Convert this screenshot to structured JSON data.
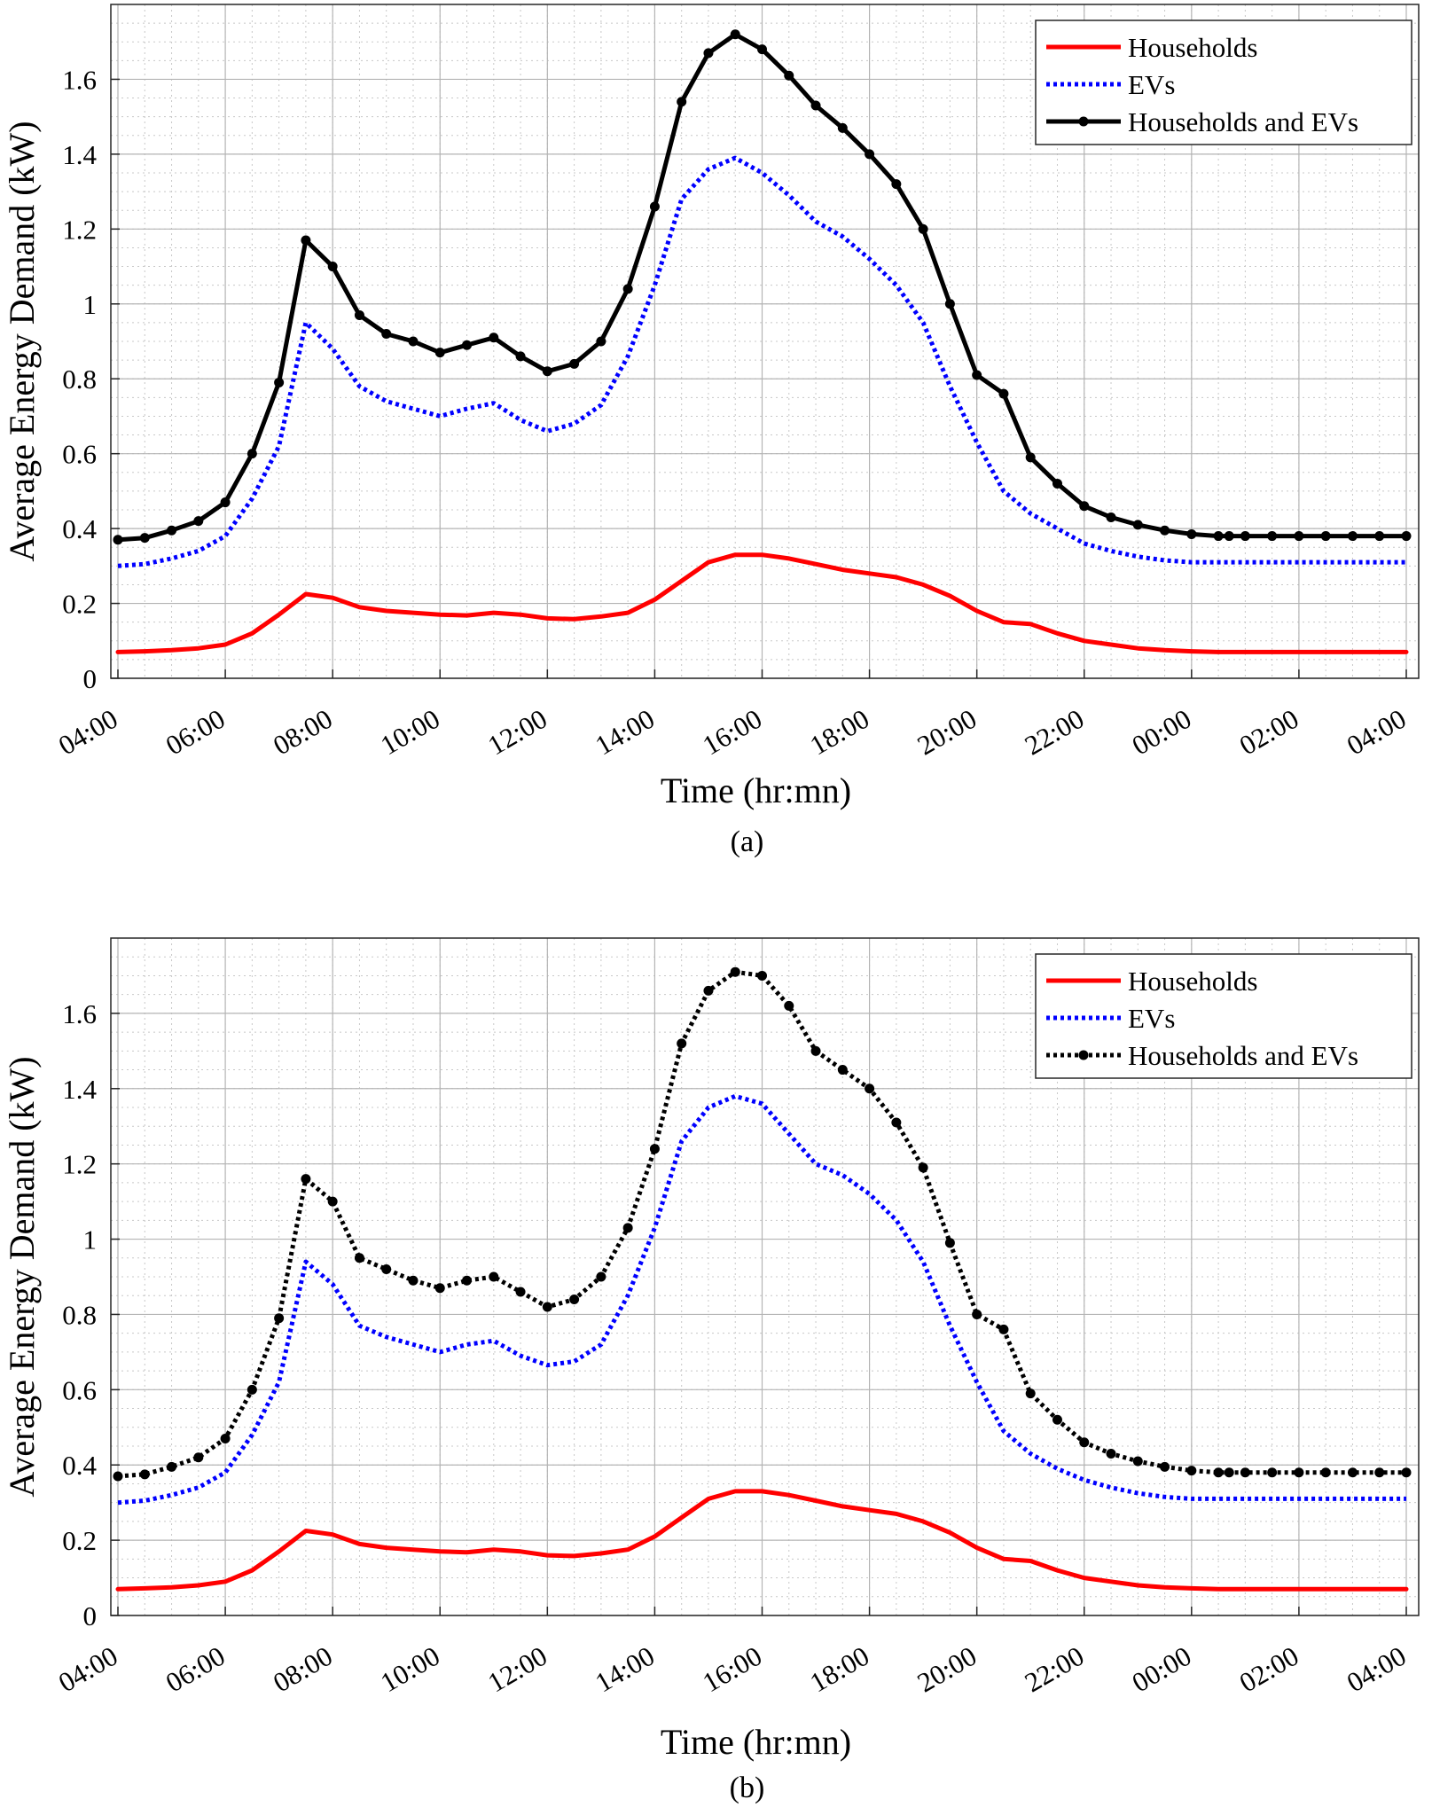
{
  "chart_data": [
    {
      "type": "line",
      "panel_label": "(a)",
      "xlabel": "Time (hr:mn)",
      "ylabel": "Average Energy Demand (kW)",
      "x_unit": "hours since 04:00",
      "xlim": [
        0,
        24
      ],
      "ylim": [
        0,
        1.8
      ],
      "grid": true,
      "minor_grid": true,
      "legend_position": "top-right",
      "x_ticks": [
        0,
        2,
        4,
        6,
        8,
        10,
        12,
        14,
        16,
        18,
        20,
        22,
        24
      ],
      "x_tick_labels": [
        "04:00",
        "06:00",
        "08:00",
        "10:00",
        "12:00",
        "14:00",
        "16:00",
        "18:00",
        "20:00",
        "22:00",
        "00:00",
        "02:00",
        "04:00"
      ],
      "y_ticks": [
        0,
        0.2,
        0.4,
        0.6,
        0.8,
        1,
        1.2,
        1.4,
        1.6
      ],
      "y_tick_labels": [
        "0",
        "0.2",
        "0.4",
        "0.6",
        "0.8",
        "1",
        "1.2",
        "1.4",
        "1.6"
      ],
      "x": [
        0,
        0.5,
        1,
        1.5,
        2,
        2.5,
        3,
        3.5,
        4,
        4.5,
        5,
        5.5,
        6,
        6.5,
        7,
        7.5,
        8,
        8.5,
        9,
        9.5,
        10,
        10.5,
        11,
        11.5,
        12,
        12.5,
        13,
        13.5,
        14,
        14.5,
        15,
        15.5,
        16,
        16.5,
        17,
        17.5,
        18,
        18.5,
        19,
        19.5,
        20,
        20.5,
        20.7,
        21,
        21.5,
        22,
        22.5,
        23,
        23.5,
        24
      ],
      "series": [
        {
          "name": "Households",
          "color": "#ff0000",
          "style": "solid",
          "values": [
            0.07,
            0.072,
            0.075,
            0.08,
            0.09,
            0.12,
            0.17,
            0.225,
            0.215,
            0.19,
            0.18,
            0.175,
            0.17,
            0.168,
            0.175,
            0.17,
            0.16,
            0.158,
            0.165,
            0.175,
            0.21,
            0.26,
            0.31,
            0.33,
            0.33,
            0.32,
            0.305,
            0.29,
            0.28,
            0.27,
            0.25,
            0.22,
            0.18,
            0.15,
            0.145,
            0.12,
            0.1,
            0.09,
            0.08,
            0.075,
            0.072,
            0.07,
            0.07,
            0.07,
            0.07,
            0.07,
            0.07,
            0.07,
            0.07,
            0.07
          ]
        },
        {
          "name": "EVs",
          "color": "#0000ff",
          "style": "dotted",
          "values": [
            0.3,
            0.305,
            0.32,
            0.34,
            0.38,
            0.48,
            0.62,
            0.95,
            0.88,
            0.78,
            0.74,
            0.72,
            0.7,
            0.72,
            0.735,
            0.69,
            0.66,
            0.68,
            0.73,
            0.86,
            1.05,
            1.28,
            1.36,
            1.39,
            1.35,
            1.29,
            1.22,
            1.18,
            1.12,
            1.05,
            0.95,
            0.78,
            0.63,
            0.5,
            0.44,
            0.4,
            0.36,
            0.34,
            0.325,
            0.315,
            0.31,
            0.31,
            0.31,
            0.31,
            0.31,
            0.31,
            0.31,
            0.31,
            0.31,
            0.31
          ]
        },
        {
          "name": "Households and EVs",
          "color": "#000000",
          "style": "solid-marker",
          "values": [
            0.37,
            0.375,
            0.395,
            0.42,
            0.47,
            0.6,
            0.79,
            1.17,
            1.1,
            0.97,
            0.92,
            0.9,
            0.87,
            0.89,
            0.91,
            0.86,
            0.82,
            0.84,
            0.9,
            1.04,
            1.26,
            1.54,
            1.67,
            1.72,
            1.68,
            1.61,
            1.53,
            1.47,
            1.4,
            1.32,
            1.2,
            1.0,
            0.81,
            0.76,
            0.59,
            0.52,
            0.46,
            0.43,
            0.41,
            0.395,
            0.385,
            0.38,
            0.38,
            0.38,
            0.38,
            0.38,
            0.38,
            0.38,
            0.38,
            0.38
          ]
        }
      ]
    },
    {
      "type": "line",
      "panel_label": "(b)",
      "xlabel": "Time (hr:mn)",
      "ylabel": "Average Energy Demand (kW)",
      "x_unit": "hours since 04:00",
      "xlim": [
        0,
        24
      ],
      "ylim": [
        0,
        1.8
      ],
      "grid": true,
      "minor_grid": true,
      "legend_position": "top-right",
      "x_ticks": [
        0,
        2,
        4,
        6,
        8,
        10,
        12,
        14,
        16,
        18,
        20,
        22,
        24
      ],
      "x_tick_labels": [
        "04:00",
        "06:00",
        "08:00",
        "10:00",
        "12:00",
        "14:00",
        "16:00",
        "18:00",
        "20:00",
        "22:00",
        "00:00",
        "02:00",
        "04:00"
      ],
      "y_ticks": [
        0,
        0.2,
        0.4,
        0.6,
        0.8,
        1,
        1.2,
        1.4,
        1.6
      ],
      "y_tick_labels": [
        "0",
        "0.2",
        "0.4",
        "0.6",
        "0.8",
        "1",
        "1.2",
        "1.4",
        "1.6"
      ],
      "x": [
        0,
        0.5,
        1,
        1.5,
        2,
        2.5,
        3,
        3.5,
        4,
        4.5,
        5,
        5.5,
        6,
        6.5,
        7,
        7.5,
        8,
        8.5,
        9,
        9.5,
        10,
        10.5,
        11,
        11.5,
        12,
        12.5,
        13,
        13.5,
        14,
        14.5,
        15,
        15.5,
        16,
        16.5,
        17,
        17.5,
        18,
        18.5,
        19,
        19.5,
        20,
        20.5,
        20.7,
        21,
        21.5,
        22,
        22.5,
        23,
        23.5,
        24
      ],
      "series": [
        {
          "name": "Households",
          "color": "#ff0000",
          "style": "solid",
          "values": [
            0.07,
            0.072,
            0.075,
            0.08,
            0.09,
            0.12,
            0.17,
            0.225,
            0.215,
            0.19,
            0.18,
            0.175,
            0.17,
            0.168,
            0.175,
            0.17,
            0.16,
            0.158,
            0.165,
            0.175,
            0.21,
            0.26,
            0.31,
            0.33,
            0.33,
            0.32,
            0.305,
            0.29,
            0.28,
            0.27,
            0.25,
            0.22,
            0.18,
            0.15,
            0.145,
            0.12,
            0.1,
            0.09,
            0.08,
            0.075,
            0.072,
            0.07,
            0.07,
            0.07,
            0.07,
            0.07,
            0.07,
            0.07,
            0.07,
            0.07
          ]
        },
        {
          "name": "EVs",
          "color": "#0000ff",
          "style": "dotted",
          "values": [
            0.3,
            0.305,
            0.32,
            0.34,
            0.38,
            0.48,
            0.62,
            0.94,
            0.88,
            0.77,
            0.74,
            0.72,
            0.7,
            0.72,
            0.73,
            0.69,
            0.665,
            0.675,
            0.72,
            0.85,
            1.03,
            1.26,
            1.35,
            1.38,
            1.36,
            1.28,
            1.2,
            1.17,
            1.12,
            1.05,
            0.94,
            0.77,
            0.62,
            0.49,
            0.43,
            0.39,
            0.36,
            0.34,
            0.325,
            0.315,
            0.31,
            0.31,
            0.31,
            0.31,
            0.31,
            0.31,
            0.31,
            0.31,
            0.31,
            0.31
          ]
        },
        {
          "name": "Households and EVs",
          "color": "#000000",
          "style": "dotted-marker",
          "values": [
            0.37,
            0.375,
            0.395,
            0.42,
            0.47,
            0.6,
            0.79,
            1.16,
            1.1,
            0.95,
            0.92,
            0.89,
            0.87,
            0.89,
            0.9,
            0.86,
            0.82,
            0.84,
            0.9,
            1.03,
            1.24,
            1.52,
            1.66,
            1.71,
            1.7,
            1.62,
            1.5,
            1.45,
            1.4,
            1.31,
            1.19,
            0.99,
            0.8,
            0.76,
            0.59,
            0.52,
            0.46,
            0.43,
            0.41,
            0.395,
            0.385,
            0.38,
            0.38,
            0.38,
            0.38,
            0.38,
            0.38,
            0.38,
            0.38,
            0.38
          ]
        }
      ]
    }
  ]
}
